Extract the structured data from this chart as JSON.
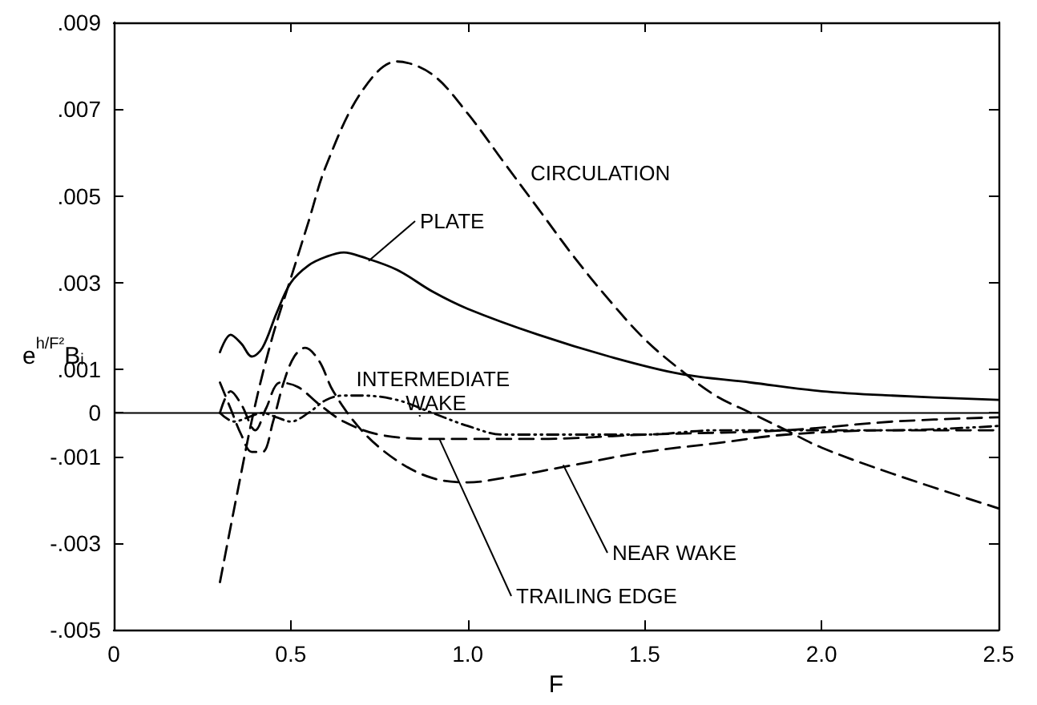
{
  "chart_data": {
    "type": "line",
    "xlabel": "F",
    "ylabel": "e$^{h/F²}$B$_{i}$",
    "xlim": [
      0,
      2.5
    ],
    "xticks": [
      0,
      0.5,
      {
        "value": 1.0,
        "label": "1.0"
      },
      1.5,
      {
        "value": 2.0,
        "label": "2.0"
      },
      2.5
    ],
    "ylim": [
      -0.005,
      0.009
    ],
    "yticks": [
      {
        "value": -0.005,
        "label": "-.005"
      },
      {
        "value": -0.003,
        "label": "-.003"
      },
      {
        "value": -0.001,
        "label": "-.001"
      },
      0,
      {
        "value": 0.001,
        "label": ".001"
      },
      {
        "value": 0.003,
        "label": ".003"
      },
      {
        "value": 0.005,
        "label": ".005"
      },
      {
        "value": 0.007,
        "label": ".007"
      },
      {
        "value": 0.009,
        "label": ".009"
      }
    ],
    "grid": false,
    "legend": false,
    "marker": "none",
    "ref_lines": [
      {
        "axis": "y",
        "value": 0,
        "color": "#000000",
        "line_style": "solid"
      }
    ],
    "series": [
      {
        "name": "CIRCULATION",
        "color": "#000000",
        "line_style": "dashed",
        "x": [
          0.3,
          0.35,
          0.4,
          0.45,
          0.5,
          0.55,
          0.6,
          0.7,
          0.8,
          0.9,
          1.0,
          1.1,
          1.2,
          1.3,
          1.4,
          1.5,
          1.6,
          1.7,
          1.8,
          1.9,
          2.0,
          2.2,
          2.5
        ],
        "values": [
          -0.0039,
          -0.0018,
          0.0002,
          0.0018,
          0.0031,
          0.0044,
          0.0057,
          0.0074,
          0.0081,
          0.0078,
          0.0069,
          0.0058,
          0.0047,
          0.0036,
          0.0026,
          0.0017,
          0.001,
          0.0004,
          0.0,
          -0.0004,
          -0.0008,
          -0.0014,
          -0.0022
        ]
      },
      {
        "name": "PLATE",
        "color": "#000000",
        "line_style": "solid",
        "x": [
          0.3,
          0.33,
          0.36,
          0.39,
          0.42,
          0.46,
          0.5,
          0.55,
          0.6,
          0.65,
          0.7,
          0.8,
          0.9,
          1.0,
          1.2,
          1.4,
          1.6,
          1.8,
          2.0,
          2.2,
          2.5
        ],
        "values": [
          0.0014,
          0.0018,
          0.0016,
          0.0013,
          0.0015,
          0.0023,
          0.003,
          0.0034,
          0.0036,
          0.0037,
          0.0036,
          0.0033,
          0.0028,
          0.0024,
          0.0018,
          0.0013,
          0.0009,
          0.0007,
          0.0005,
          0.0004,
          0.0003
        ]
      },
      {
        "name": "INTERMEDIATE WAKE",
        "color": "#000000",
        "line_style": "dotted",
        "x": [
          0.3,
          0.34,
          0.38,
          0.42,
          0.46,
          0.5,
          0.55,
          0.6,
          0.65,
          0.7,
          0.8,
          0.9,
          1.0,
          1.1,
          1.3,
          1.5,
          1.7,
          1.9,
          2.2,
          2.5
        ],
        "values": [
          0.0,
          -0.0002,
          -0.0001,
          0.0,
          -0.0001,
          -0.0002,
          0.0,
          0.0003,
          0.0004,
          0.0004,
          0.0003,
          0.0,
          -0.0003,
          -0.0005,
          -0.0005,
          -0.0005,
          -0.0004,
          -0.0004,
          -0.0004,
          -0.0003
        ]
      },
      {
        "name": "NEAR WAKE",
        "color": "#000000",
        "line_style": "dashed",
        "x": [
          0.3,
          0.33,
          0.36,
          0.39,
          0.42,
          0.45,
          0.48,
          0.51,
          0.54,
          0.58,
          0.62,
          0.7,
          0.8,
          0.9,
          1.0,
          1.1,
          1.3,
          1.5,
          1.7,
          1.9,
          2.2,
          2.5
        ],
        "values": [
          0.0007,
          0.0001,
          -0.0005,
          -0.0009,
          -0.0009,
          -0.0002,
          0.0007,
          0.0013,
          0.0015,
          0.0012,
          0.0005,
          -0.0004,
          -0.0011,
          -0.0015,
          -0.0016,
          -0.0015,
          -0.0012,
          -0.0009,
          -0.0007,
          -0.0005,
          -0.0004,
          -0.0004
        ]
      },
      {
        "name": "TRAILING EDGE",
        "color": "#000000",
        "line_style": "dashed",
        "x": [
          0.3,
          0.33,
          0.36,
          0.4,
          0.43,
          0.47,
          0.52,
          0.58,
          0.65,
          0.75,
          0.9,
          1.0,
          1.2,
          1.5,
          1.9,
          2.2,
          2.5
        ],
        "values": [
          0.0,
          0.0005,
          0.0002,
          -0.0004,
          0.0001,
          0.0007,
          0.0006,
          0.0002,
          -0.0002,
          -0.0005,
          -0.0006,
          -0.0006,
          -0.0006,
          -0.0005,
          -0.0004,
          -0.0002,
          -0.0001
        ]
      }
    ]
  }
}
